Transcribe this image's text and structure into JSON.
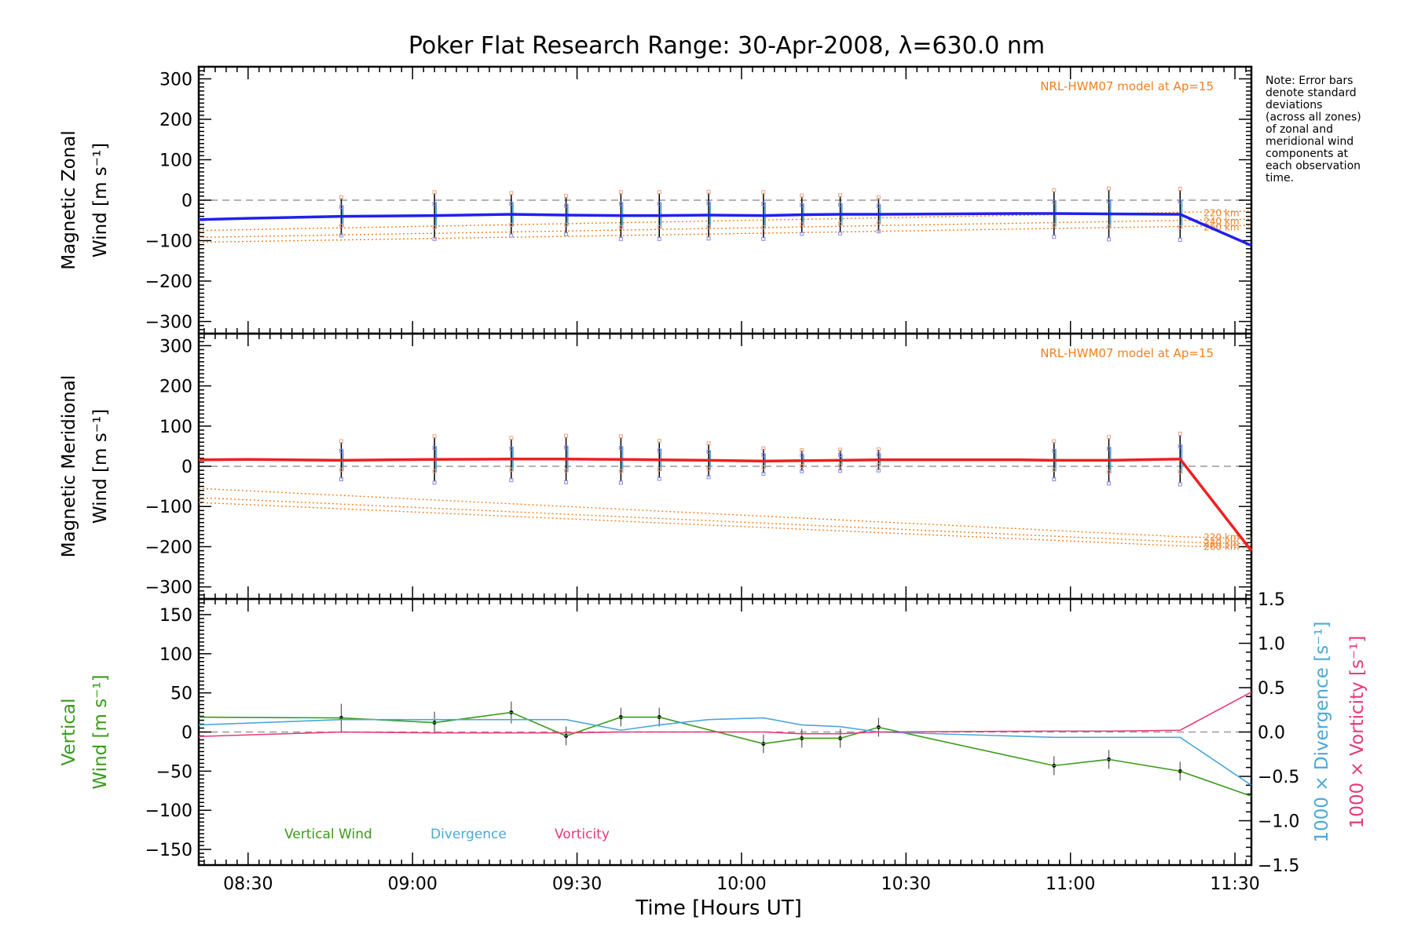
{
  "title": "Poker Flat Research Range: 30-Apr-2008, λ=630.0 nm",
  "note": [
    "Note: Error bars",
    "denote standard",
    "deviations",
    "(across all zones)",
    "of zonal and",
    "meridional wind",
    "components at",
    "each observation",
    "time."
  ],
  "colors": {
    "zonal": "#2020ee",
    "meridional": "#ee2020",
    "model": "#f08020",
    "vertical": "#3a9a1a",
    "divergence": "#4aa8d8",
    "vorticity": "#e83878",
    "errorbar": "#000000",
    "zone_points": "#8888e8",
    "zone_points_model": "#f0a080"
  },
  "chart_data": [
    {
      "type": "line",
      "panel": "zonal",
      "ylabel_line1": "Magnetic Zonal",
      "ylabel_line2": "Wind [m s⁻¹]",
      "ylim": [
        -330,
        330
      ],
      "yticks": [
        300,
        200,
        100,
        0,
        -100,
        -200,
        -300
      ],
      "model_label": "NRL-HWM07 model at Ap=15",
      "model_altitudes": [
        "220 km",
        "240 km",
        "260 km"
      ],
      "series": [
        {
          "x": [
            "08:21",
            "08:30",
            "08:47",
            "09:04",
            "09:18",
            "09:28",
            "09:38",
            "09:45",
            "09:54",
            "10:04",
            "10:11",
            "10:18",
            "10:25",
            "10:51",
            "10:57",
            "11:07",
            "11:20",
            "11:33"
          ],
          "values": [
            -48,
            -45,
            -40,
            -38,
            -35,
            -37,
            -38,
            -38,
            -37,
            -38,
            -36,
            -35,
            -35,
            -33,
            -33,
            -34,
            -35,
            -112
          ]
        }
      ],
      "obs_times": [
        "08:47",
        "09:04",
        "09:18",
        "09:28",
        "09:38",
        "09:45",
        "09:54",
        "10:04",
        "10:11",
        "10:18",
        "10:25",
        "10:57",
        "11:07",
        "11:20"
      ],
      "errors": [
        45,
        55,
        50,
        45,
        55,
        55,
        55,
        55,
        45,
        45,
        40,
        55,
        60,
        60
      ],
      "model_curves": [
        {
          "name": "220 km",
          "x": [
            "08:21",
            "11:20",
            "11:33"
          ],
          "values": [
            -75,
            -30,
            -27
          ]
        },
        {
          "name": "240 km",
          "x": [
            "08:21",
            "11:20",
            "11:33"
          ],
          "values": [
            -92,
            -50,
            -47
          ]
        },
        {
          "name": "260 km",
          "x": [
            "08:21",
            "11:20",
            "11:33"
          ],
          "values": [
            -104,
            -65,
            -62
          ]
        }
      ]
    },
    {
      "type": "line",
      "panel": "meridional",
      "ylabel_line1": "Magnetic Meridional",
      "ylabel_line2": "Wind [m s⁻¹]",
      "ylim": [
        -330,
        330
      ],
      "yticks": [
        300,
        200,
        100,
        0,
        -100,
        -200,
        -300
      ],
      "model_label": "NRL-HWM07 model at Ap=15",
      "model_altitudes": [
        "220 km",
        "240 km",
        "260 km"
      ],
      "series": [
        {
          "x": [
            "08:21",
            "08:30",
            "08:47",
            "09:04",
            "09:18",
            "09:28",
            "09:38",
            "09:45",
            "09:54",
            "10:04",
            "10:11",
            "10:18",
            "10:25",
            "10:51",
            "10:57",
            "11:07",
            "11:20",
            "11:33"
          ],
          "values": [
            16,
            17,
            15,
            17,
            18,
            18,
            17,
            16,
            15,
            13,
            14,
            15,
            16,
            16,
            15,
            15,
            18,
            -210
          ]
        }
      ],
      "obs_times": [
        "08:47",
        "09:04",
        "09:18",
        "09:28",
        "09:38",
        "09:45",
        "09:54",
        "10:04",
        "10:11",
        "10:18",
        "10:25",
        "10:57",
        "11:07",
        "11:20"
      ],
      "errors": [
        45,
        55,
        50,
        55,
        55,
        45,
        40,
        30,
        25,
        25,
        25,
        45,
        55,
        60
      ],
      "model_curves": [
        {
          "name": "220 km",
          "x": [
            "08:21",
            "11:20",
            "11:33"
          ],
          "values": [
            -55,
            -175,
            -180
          ]
        },
        {
          "name": "240 km",
          "x": [
            "08:21",
            "11:20",
            "11:33"
          ],
          "values": [
            -78,
            -188,
            -193
          ]
        },
        {
          "name": "260 km",
          "x": [
            "08:21",
            "11:20",
            "11:33"
          ],
          "values": [
            -90,
            -198,
            -203
          ]
        }
      ]
    },
    {
      "type": "line",
      "panel": "vertical",
      "ylabel_line1": "Vertical",
      "ylabel_line2": "Wind [m s⁻¹]",
      "ylim": [
        -170,
        170
      ],
      "yticks": [
        150,
        100,
        50,
        0,
        -50,
        -100,
        -150
      ],
      "y2label_divergence": "1000 × Divergence [s⁻¹]",
      "y2label_vorticity": "1000 × Vorticity [s⁻¹]",
      "y2lim": [
        -1.5,
        1.5
      ],
      "y2ticks": [
        "1.5",
        "1.0",
        "0.5",
        "0.0",
        "-0.5",
        "-1.0",
        "-1.5"
      ],
      "legend": [
        "Vertical Wind",
        "Divergence",
        "Vorticity"
      ],
      "series": [
        {
          "name": "Vertical Wind",
          "x": [
            "08:21",
            "08:47",
            "09:04",
            "09:18",
            "09:28",
            "09:38",
            "09:45",
            "10:04",
            "10:11",
            "10:18",
            "10:25",
            "10:57",
            "11:07",
            "11:20",
            "11:33"
          ],
          "values": [
            19,
            18,
            12,
            25,
            -5,
            19,
            19,
            -15,
            -8,
            -8,
            6,
            -43,
            -35,
            -50,
            -82
          ]
        },
        {
          "name": "Divergence",
          "x": [
            "08:21",
            "08:47",
            "09:04",
            "09:18",
            "09:28",
            "09:38",
            "09:45",
            "09:54",
            "10:04",
            "10:11",
            "10:18",
            "10:25",
            "10:57",
            "11:07",
            "11:20",
            "11:33"
          ],
          "values": [
            0.08,
            0.14,
            0.14,
            0.14,
            0.14,
            0.02,
            0.08,
            0.14,
            0.16,
            0.08,
            0.06,
            0.0,
            -0.06,
            -0.06,
            -0.06,
            -0.6
          ]
        },
        {
          "name": "Vorticity",
          "x": [
            "08:21",
            "08:47",
            "09:04",
            "09:18",
            "09:28",
            "09:38",
            "09:45",
            "10:04",
            "10:11",
            "10:18",
            "10:25",
            "10:57",
            "11:07",
            "11:20",
            "11:33"
          ],
          "values": [
            -0.05,
            0.0,
            -0.01,
            -0.01,
            -0.01,
            0.0,
            0.0,
            0.0,
            -0.02,
            -0.02,
            0.0,
            0.01,
            0.01,
            0.02,
            0.45
          ]
        }
      ],
      "obs_times": [
        "08:47",
        "09:04",
        "09:18",
        "09:28",
        "09:38",
        "09:45",
        "10:04",
        "10:11",
        "10:18",
        "10:25",
        "10:57",
        "11:07",
        "11:20"
      ],
      "errors": [
        18,
        14,
        14,
        12,
        12,
        12,
        12,
        12,
        12,
        12,
        12,
        12,
        12
      ]
    }
  ],
  "xaxis": {
    "label": "Time [Hours UT]",
    "xlim": [
      "08:21",
      "11:33"
    ],
    "ticks": [
      "08:30",
      "09:00",
      "09:30",
      "10:00",
      "10:30",
      "11:00",
      "11:30"
    ]
  }
}
